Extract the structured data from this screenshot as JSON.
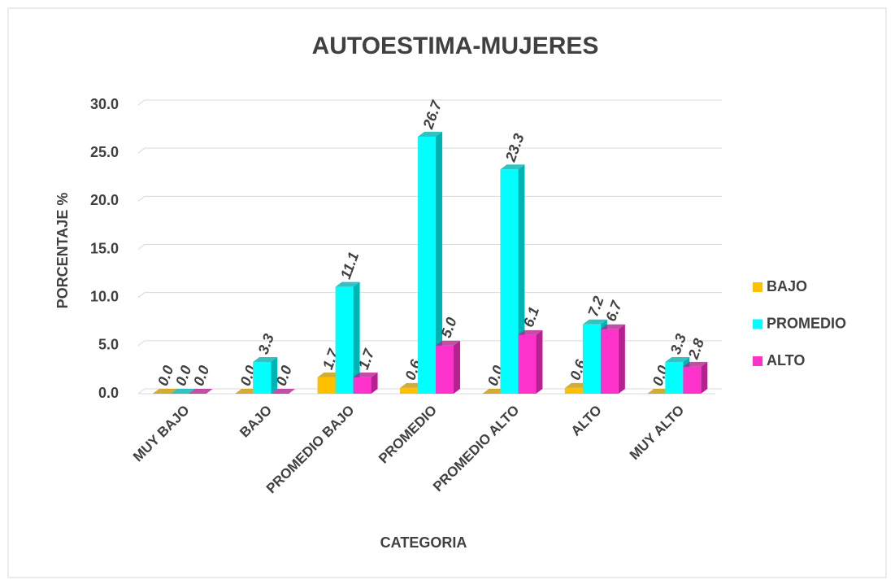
{
  "chart_data": {
    "type": "bar3d",
    "title": "AUTOESTIMA-MUJERES",
    "x_label": "CATEGORIA",
    "y_label": "PORCENTAJE %",
    "categories": [
      "MUY BAJO",
      "BAJO",
      "PROMEDIO BAJO",
      "PROMEDIO",
      "PROMEDIO ALTO",
      "ALTO",
      "MUY ALTO"
    ],
    "series": [
      {
        "name": "BAJO",
        "color": "#ffc000",
        "side": "#c99700",
        "values": [
          0,
          0,
          1.7,
          0.6,
          0,
          0.6,
          0
        ],
        "value_labels": [
          "0.0",
          "0.0",
          "1.7",
          "0.6",
          "0.0",
          "0.6",
          "0.0"
        ]
      },
      {
        "name": "PROMEDIO",
        "color": "#00ffff",
        "side": "#00b3b3",
        "values": [
          0,
          3.3,
          11.1,
          26.7,
          23.3,
          7.2,
          3.3
        ],
        "value_labels": [
          "0.0",
          "3.3",
          "11.1",
          "26.7",
          "23.3",
          "7.2",
          "3.3"
        ]
      },
      {
        "name": "ALTO",
        "color": "#ff33cc",
        "side": "#b3228f",
        "values": [
          0,
          0,
          1.7,
          5.0,
          6.1,
          6.7,
          2.8
        ],
        "value_labels": [
          "0.0",
          "0.0",
          "1.7",
          "5.0",
          "6.1",
          "6.7",
          "2.8"
        ]
      }
    ],
    "ylim": [
      0,
      30
    ],
    "yticks": [
      {
        "value": 0,
        "label": "0.0"
      },
      {
        "value": 5,
        "label": "5.0"
      },
      {
        "value": 10,
        "label": "10.0"
      },
      {
        "value": 15,
        "label": "15.0"
      },
      {
        "value": 20,
        "label": "20.0"
      },
      {
        "value": 25,
        "label": "25.0"
      },
      {
        "value": 30,
        "label": "30.0"
      }
    ],
    "grid": true,
    "legend": "right"
  }
}
